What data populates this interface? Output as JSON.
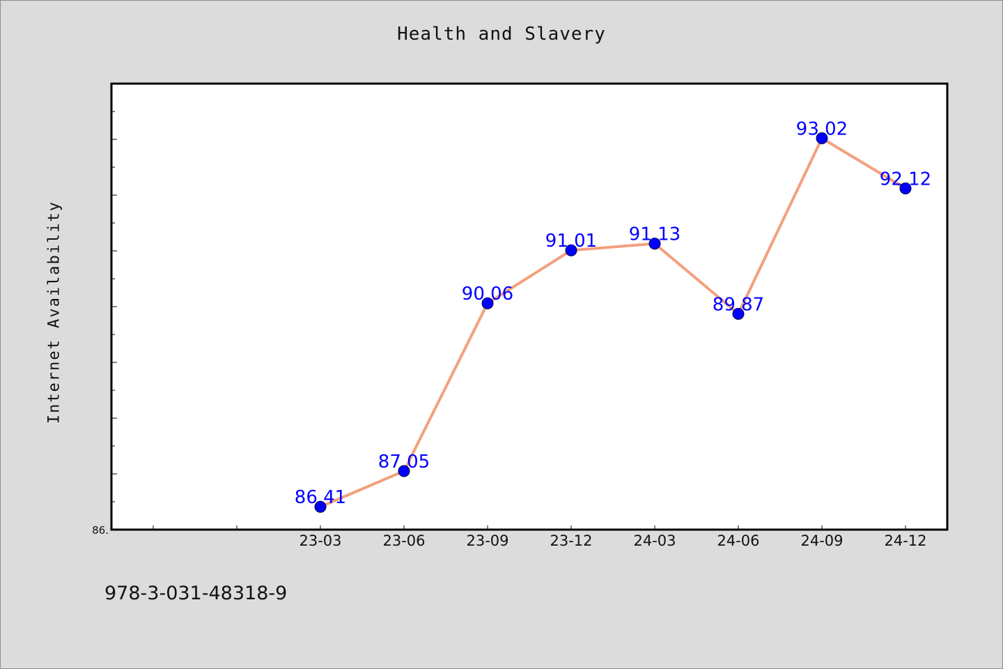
{
  "chart_data": {
    "type": "line",
    "title": "Health and Slavery",
    "ylabel": "Internet Availability",
    "xlabel": "",
    "categories": [
      "23-03",
      "23-06",
      "23-09",
      "23-12",
      "24-03",
      "24-06",
      "24-09",
      "24-12"
    ],
    "series": [
      {
        "values": [
          86.41,
          87.05,
          90.06,
          91.01,
          91.13,
          89.87,
          93.02,
          92.12
        ],
        "data_labels": [
          "86.41",
          "87.05",
          "90.06",
          "91.01",
          "91.13",
          "89.87",
          "93.02",
          "92.12"
        ],
        "line_color": "#f4a07e",
        "marker_color": "#0000ff"
      }
    ],
    "y_tick_labels": [
      "86."
    ],
    "ylim": [
      86,
      94
    ],
    "grid": false,
    "legend": "none"
  },
  "footer": {
    "isbn": "978-3-031-48318-9"
  }
}
